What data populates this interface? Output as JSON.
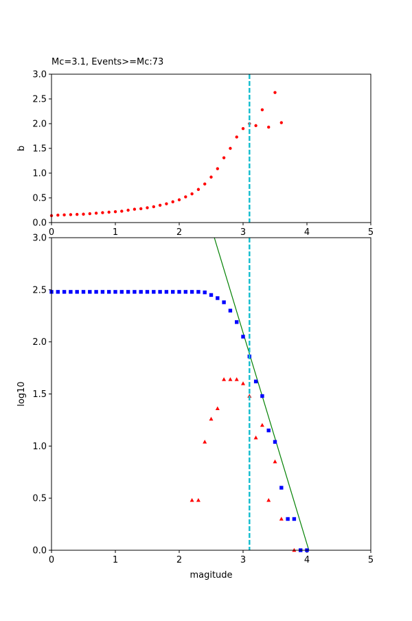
{
  "chart_data": [
    {
      "type": "scatter",
      "title": "Mc=3.1, Events>=Mc:73",
      "ylabel": "b",
      "xlim": [
        0,
        5
      ],
      "ylim": [
        0,
        3
      ],
      "xticks": [
        0,
        1,
        2,
        3,
        4,
        5
      ],
      "yticks": [
        {
          "value": 0,
          "label": "0.0"
        },
        0.5,
        {
          "value": 1,
          "label": "1.0"
        },
        1.5,
        {
          "value": 2,
          "label": "2.0"
        },
        2.5,
        {
          "value": 3,
          "label": "3.0"
        }
      ],
      "vline": {
        "x": 3.1,
        "color": "#17becf"
      },
      "series": [
        {
          "marker": "circle",
          "color": "#ff0000",
          "x": [
            0,
            0.1,
            0.2,
            0.3,
            0.4,
            0.5,
            0.6,
            0.7,
            0.8,
            0.9,
            1.0,
            1.1,
            1.2,
            1.3,
            1.4,
            1.5,
            1.6,
            1.7,
            1.8,
            1.9,
            2.0,
            2.1,
            2.2,
            2.3,
            2.4,
            2.5,
            2.6,
            2.7,
            2.8,
            2.9,
            3.0,
            3.1,
            3.2,
            3.3,
            3.4,
            3.5,
            3.6
          ],
          "values": [
            0.14,
            0.15,
            0.155,
            0.16,
            0.165,
            0.17,
            0.18,
            0.19,
            0.2,
            0.21,
            0.22,
            0.23,
            0.25,
            0.27,
            0.28,
            0.3,
            0.32,
            0.35,
            0.38,
            0.42,
            0.46,
            0.52,
            0.58,
            0.67,
            0.78,
            0.92,
            1.09,
            1.31,
            1.5,
            1.73,
            1.9,
            2.0,
            1.96,
            2.28,
            1.93,
            2.63,
            2.02
          ]
        }
      ]
    },
    {
      "type": "scatter",
      "xlabel": "magitude",
      "ylabel": "log10",
      "xlim": [
        0,
        5
      ],
      "ylim": [
        0,
        3
      ],
      "xticks": [
        0,
        1,
        2,
        3,
        4,
        5
      ],
      "yticks": [
        {
          "value": 0,
          "label": "0.0"
        },
        0.5,
        {
          "value": 1,
          "label": "1.0"
        },
        1.5,
        {
          "value": 2,
          "label": "2.0"
        },
        2.5,
        {
          "value": 3,
          "label": "3.0"
        }
      ],
      "vline": {
        "x": 3.1,
        "color": "#17becf"
      },
      "series": [
        {
          "marker": "line",
          "color": "#008000",
          "x": [
            2.55,
            4.03
          ],
          "values": [
            3.0,
            0.0
          ]
        },
        {
          "marker": "triangle",
          "color": "#ff0000",
          "x": [
            2.2,
            2.3,
            2.4,
            2.5,
            2.6,
            2.7,
            2.8,
            2.9,
            3.0,
            3.1,
            3.2,
            3.3,
            3.4,
            3.5,
            3.6,
            3.8
          ],
          "values": [
            0.48,
            0.48,
            1.04,
            1.26,
            1.36,
            1.64,
            1.64,
            1.64,
            1.6,
            1.48,
            1.08,
            1.2,
            0.48,
            0.85,
            0.3,
            0.0
          ]
        },
        {
          "marker": "square",
          "color": "#0000ff",
          "x": [
            0,
            0.1,
            0.2,
            0.3,
            0.4,
            0.5,
            0.6,
            0.7,
            0.8,
            0.9,
            1.0,
            1.1,
            1.2,
            1.3,
            1.4,
            1.5,
            1.6,
            1.7,
            1.8,
            1.9,
            2.0,
            2.1,
            2.2,
            2.3,
            2.4,
            2.5,
            2.6,
            2.7,
            2.8,
            2.9,
            3.0,
            3.1,
            3.2,
            3.3,
            3.4,
            3.5,
            3.6,
            3.7,
            3.8,
            3.9,
            4.0
          ],
          "values": [
            2.48,
            2.48,
            2.48,
            2.48,
            2.48,
            2.48,
            2.48,
            2.48,
            2.48,
            2.48,
            2.48,
            2.48,
            2.48,
            2.48,
            2.48,
            2.48,
            2.48,
            2.48,
            2.48,
            2.48,
            2.48,
            2.48,
            2.48,
            2.48,
            2.475,
            2.45,
            2.42,
            2.38,
            2.3,
            2.19,
            2.05,
            1.86,
            1.62,
            1.48,
            1.15,
            1.04,
            0.6,
            0.3,
            0.3,
            0.0,
            0.0
          ]
        }
      ]
    }
  ]
}
